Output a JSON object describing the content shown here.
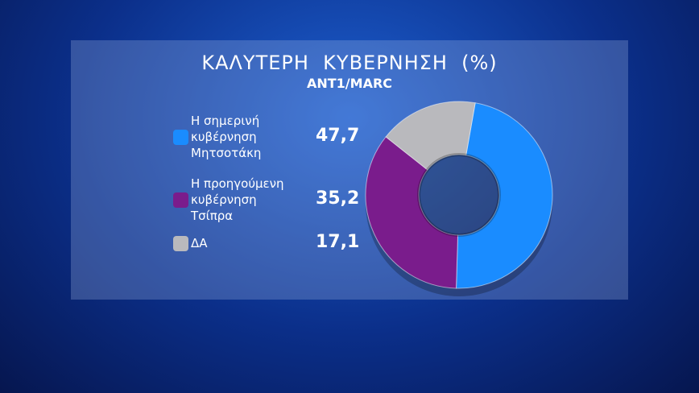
{
  "chart_data": {
    "type": "donut",
    "title": "ΚΑΛΥΤΕΡΗ  ΚΥΒΕΡΝΗΣΗ  (%)",
    "subtitle": "ANT1/MARC",
    "categories": [
      "Η σημερινή κυβέρνηση Μητσοτάκη",
      "Η προηγούμενη κυβέρνηση Τσίπρα",
      "ΔΑ"
    ],
    "values": [
      47.7,
      35.2,
      17.1
    ],
    "value_labels": [
      "47,7",
      "35,2",
      "17,1"
    ],
    "colors": [
      "#1a8cff",
      "#7a1c8c",
      "#b9b9bd"
    ]
  }
}
